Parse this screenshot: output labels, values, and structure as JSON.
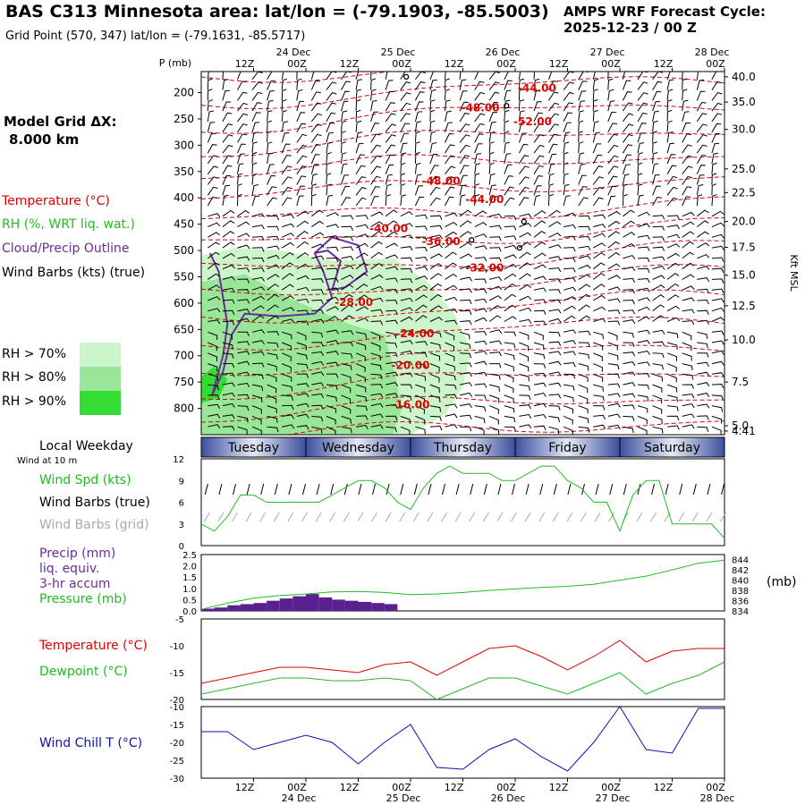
{
  "header": {
    "title": "BAS C313 Minnesota area:  lat/lon = (-79.1903, -85.5003)",
    "forecast_label": "AMPS WRF Forecast Cycle:",
    "forecast_cycle": "2025-12-23 / 00  Z",
    "grid_point": "Grid Point (570, 347) lat/lon = (-79.1631, -85.5717)"
  },
  "left_panel": {
    "model_grid_label": "Model Grid ΔX:",
    "model_grid_value": "8.000 km",
    "legend_temperature": "Temperature (°C)",
    "legend_rh": "RH (%, WRT liq. wat.)",
    "legend_cloud": "Cloud/Precip Outline",
    "legend_wind": "Wind Barbs (kts) (true)",
    "rh_70": "RH > 70%",
    "rh_80": "RH > 80%",
    "rh_90": "RH > 90%",
    "local_weekday": "Local Weekday",
    "wind_at_10m": "Wind at 10 m",
    "wind_spd_label": "Wind Spd (kts)",
    "wind_barbs_true": "Wind Barbs (true)",
    "wind_barbs_grid": "Wind Barbs (grid)",
    "precip_label": "Precip (mm)",
    "precip_liq": "liq. equiv.",
    "precip_accum": "3-hr accum",
    "pressure_label": "Pressure (mb)",
    "temp_label": "Temperature (°C)",
    "dewpoint_label": "Dewpoint (°C)",
    "windchill_label": "Wind Chill T (°C)",
    "mb_unit": "(mb)"
  },
  "colors": {
    "temperature": "#e00000",
    "rh": "#22bb22",
    "cloud": "#6a2c9a",
    "wind": "#000000",
    "grid_wind": "#aaaaaa",
    "windchill": "#1010b0",
    "rh70": "#ccf5cc",
    "rh80": "#99e699",
    "rh90": "#33dd33",
    "precip": "#5a2090",
    "weekday_bar": "#3b4f9e"
  },
  "chart_data": [
    {
      "type": "line",
      "name": "cross-section",
      "pressure_axis_label": "P (mb)",
      "pressure_levels": [
        200,
        250,
        300,
        350,
        400,
        450,
        500,
        550,
        600,
        650,
        700,
        750,
        800
      ],
      "ylim_mb": [
        160,
        850
      ],
      "height_axis_label": "Kft MSL",
      "height_ticks": [
        "40.0",
        "35.0",
        "30.0",
        "25.0",
        "22.5",
        "20.0",
        "17.5",
        "15.0",
        "12.5",
        "10.0",
        "7.5",
        "5.0",
        "4.41"
      ],
      "height_tick_mb": [
        170,
        218,
        270,
        345,
        390,
        445,
        494,
        547,
        605,
        670,
        750,
        833,
        843
      ],
      "time_range_hours": [
        0,
        120
      ],
      "time_ticks_hours": [
        12,
        24,
        36,
        48,
        60,
        72,
        84,
        96,
        108,
        120
      ],
      "time_tick_labels": [
        "12Z",
        "00Z",
        "12Z",
        "00Z",
        "12Z",
        "00Z",
        "12Z",
        "00Z",
        "12Z",
        "00Z"
      ],
      "date_labels": [
        {
          "hour": 24,
          "text": "24 Dec"
        },
        {
          "hour": 48,
          "text": "25 Dec"
        },
        {
          "hour": 72,
          "text": "26 Dec"
        },
        {
          "hour": 96,
          "text": "27 Dec"
        },
        {
          "hour": 120,
          "text": "28 Dec"
        }
      ],
      "temperature_labels": [
        {
          "text": "-44.00",
          "hour": 77,
          "mb": 198
        },
        {
          "text": "-48.00",
          "hour": 64,
          "mb": 236
        },
        {
          "text": "-52.00",
          "hour": 76,
          "mb": 262
        },
        {
          "text": "-48.00",
          "hour": 55,
          "mb": 375
        },
        {
          "text": "-44.00",
          "hour": 65,
          "mb": 410
        },
        {
          "text": "-40.00",
          "hour": 43,
          "mb": 465
        },
        {
          "text": "-36.00",
          "hour": 55,
          "mb": 490
        },
        {
          "text": "-32.00",
          "hour": 65,
          "mb": 540
        },
        {
          "text": "-28.00",
          "hour": 35,
          "mb": 605
        },
        {
          "text": "-24.00",
          "hour": 49,
          "mb": 665
        },
        {
          "text": "-20.00",
          "hour": 48,
          "mb": 725
        },
        {
          "text": "-16.00",
          "hour": 48,
          "mb": 800
        }
      ]
    },
    {
      "type": "bar",
      "name": "weekday",
      "days": [
        {
          "label": "Tuesday",
          "start": 0,
          "end": 24
        },
        {
          "label": "Wednesday",
          "start": 24,
          "end": 48
        },
        {
          "label": "Thursday",
          "start": 48,
          "end": 72
        },
        {
          "label": "Friday",
          "start": 72,
          "end": 96
        },
        {
          "label": "Saturday",
          "start": 96,
          "end": 120
        }
      ]
    },
    {
      "type": "line",
      "name": "wind-speed",
      "ylabel": "Wind Spd (kts)",
      "ylim": [
        0,
        12
      ],
      "yticks": [
        "0",
        "3",
        "6",
        "9",
        "12"
      ],
      "hours": [
        0,
        3,
        6,
        9,
        12,
        15,
        18,
        21,
        24,
        27,
        30,
        33,
        36,
        39,
        42,
        45,
        48,
        51,
        54,
        57,
        60,
        63,
        66,
        69,
        72,
        75,
        78,
        81,
        84,
        87,
        90,
        93,
        96,
        99,
        102,
        105,
        108,
        111,
        114,
        117,
        120
      ],
      "values": [
        3,
        2,
        4,
        7,
        7,
        6,
        6,
        6,
        6,
        6,
        7,
        8,
        9,
        9,
        8,
        6,
        5,
        8,
        10,
        11,
        10,
        10,
        10,
        9,
        9,
        10,
        11,
        11,
        9,
        8,
        6,
        6,
        2,
        7,
        9,
        9,
        3,
        3,
        3,
        3,
        1
      ]
    },
    {
      "type": "bar",
      "name": "precip-pressure",
      "precip_ylabel": "Precip (mm)",
      "precip_ylim": [
        0,
        2.5
      ],
      "precip_yticks": [
        "0.0",
        "0.5",
        "1.0",
        "1.5",
        "2.0",
        "2.5"
      ],
      "precip_hours": [
        0,
        3,
        6,
        9,
        12,
        15,
        18,
        21,
        24,
        27,
        30,
        33,
        36,
        39,
        42
      ],
      "precip_values": [
        0.1,
        0.15,
        0.25,
        0.3,
        0.35,
        0.45,
        0.55,
        0.65,
        0.75,
        0.6,
        0.5,
        0.45,
        0.4,
        0.35,
        0.3
      ],
      "pressure_ylim": [
        834,
        845
      ],
      "pressure_yticks": [
        "834",
        "836",
        "838",
        "840",
        "842",
        "844"
      ],
      "pressure_hours": [
        0,
        6,
        12,
        18,
        24,
        30,
        36,
        42,
        48,
        54,
        60,
        66,
        72,
        78,
        84,
        90,
        96,
        102,
        108,
        114,
        120
      ],
      "pressure_values": [
        834.3,
        835.5,
        836.5,
        837.0,
        837.3,
        837.7,
        837.8,
        837.6,
        837.2,
        837.3,
        837.6,
        838.0,
        838.3,
        838.6,
        838.8,
        839.2,
        840.0,
        840.8,
        842.0,
        843.3,
        843.9
      ]
    },
    {
      "type": "line",
      "name": "temperature-dewpoint",
      "ylim": [
        -20,
        -5
      ],
      "yticks": [
        "-5",
        "-10",
        "-15",
        "-20"
      ],
      "hours": [
        0,
        6,
        12,
        18,
        24,
        30,
        36,
        42,
        48,
        54,
        60,
        66,
        72,
        78,
        84,
        90,
        96,
        102,
        108,
        114,
        120
      ],
      "temperature": [
        -17,
        -16,
        -15,
        -14,
        -14,
        -14.5,
        -15,
        -13.5,
        -13,
        -15.5,
        -13,
        -10.5,
        -10,
        -12,
        -14.5,
        -12,
        -9,
        -13,
        -11,
        -10.5,
        -10.5
      ],
      "dewpoint": [
        -19,
        -18,
        -17,
        -16,
        -16,
        -16.5,
        -16.5,
        -16,
        -16.5,
        -20,
        -18,
        -16,
        -16,
        -17.5,
        -19,
        -17,
        -15,
        -19,
        -17,
        -15.5,
        -13
      ]
    },
    {
      "type": "line",
      "name": "wind-chill",
      "ylim": [
        -30,
        -10
      ],
      "yticks": [
        "-10",
        "-15",
        "-20",
        "-25",
        "-30"
      ],
      "hours": [
        0,
        6,
        12,
        18,
        24,
        30,
        36,
        42,
        48,
        54,
        60,
        66,
        72,
        78,
        84,
        90,
        96,
        102,
        108,
        114,
        120
      ],
      "values": [
        -17,
        -17,
        -22,
        -20,
        -18,
        -20,
        -26,
        -20,
        -15,
        -27,
        -27.5,
        -22,
        -19,
        -24,
        -28,
        -20,
        -10,
        -22,
        -23,
        -10.5,
        -10.5
      ]
    }
  ]
}
